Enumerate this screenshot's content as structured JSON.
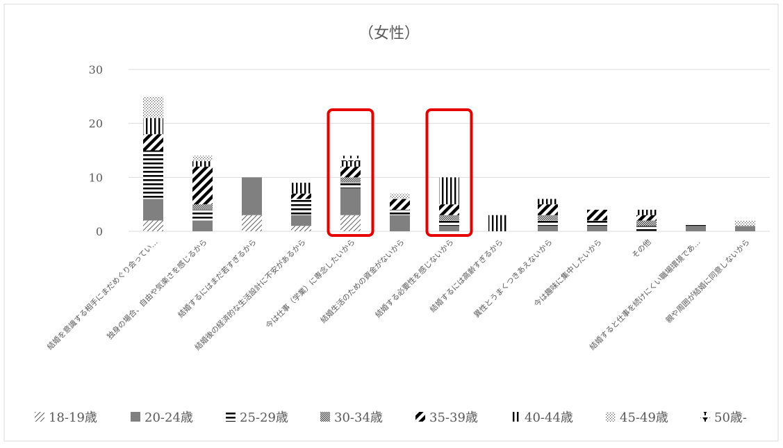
{
  "chart_data": {
    "type": "bar",
    "stacked": true,
    "title": "（女性）",
    "xlabel": "",
    "ylabel": "",
    "ylim": [
      0,
      30
    ],
    "yticks": [
      0,
      10,
      20,
      30
    ],
    "grid": true,
    "legend_position": "bottom",
    "categories": [
      "結婚を意識する相手にまだめぐり会ってい…",
      "独身の場合、自由や気楽さを感じるから",
      "結婚するにはまだ若すぎるから",
      "結婚後の経済的な生活設計に不安があるから",
      "今は仕事（学業）に専念したいから",
      "結婚生活のための資金がないから",
      "結婚する必要性を感じないから",
      "結婚するには高齢すぎるから",
      "異性とうまくつきあえないから",
      "今は趣味に集中したいから",
      "その他",
      "結婚すると仕事を続けにくい職場環境であ…",
      "親や周囲が結婚に同意しないから"
    ],
    "series": [
      {
        "name": "18-19歳",
        "pattern": "diagonal-thin",
        "values": [
          2,
          0,
          3,
          1,
          3,
          0,
          0,
          0,
          0,
          0,
          0,
          0,
          0
        ]
      },
      {
        "name": "20-24歳",
        "pattern": "solid-gray",
        "values": [
          4,
          2,
          7,
          2,
          5,
          3,
          1,
          0,
          1,
          1,
          0,
          1,
          1
        ]
      },
      {
        "name": "25-29歳",
        "pattern": "horizontal-lines",
        "values": [
          9,
          2,
          0,
          3,
          1,
          1,
          1,
          0,
          1,
          1,
          1,
          0.3,
          0
        ]
      },
      {
        "name": "30-34歳",
        "pattern": "checker",
        "values": [
          0,
          1,
          0,
          0,
          1,
          0,
          1,
          0,
          1,
          0,
          1,
          0,
          0
        ]
      },
      {
        "name": "35-39歳",
        "pattern": "diagonal-thick",
        "values": [
          3,
          7,
          0,
          1,
          2,
          2,
          2,
          0,
          2,
          2,
          1,
          0,
          0
        ]
      },
      {
        "name": "40-44歳",
        "pattern": "vertical-lines",
        "values": [
          3,
          1,
          0,
          2,
          1,
          0,
          5,
          3,
          1,
          0,
          1,
          0,
          0
        ]
      },
      {
        "name": "45-49歳",
        "pattern": "dots",
        "values": [
          4,
          1,
          0,
          0,
          0,
          1,
          0,
          0,
          0,
          0,
          0,
          0,
          1
        ]
      },
      {
        "name": "50歳-",
        "pattern": "trophy",
        "values": [
          0,
          0,
          0,
          0,
          1,
          0,
          0,
          0,
          0,
          0,
          0,
          0,
          0
        ]
      }
    ],
    "highlighted_categories": [
      4,
      6
    ],
    "highlight_color": "#e60000"
  }
}
